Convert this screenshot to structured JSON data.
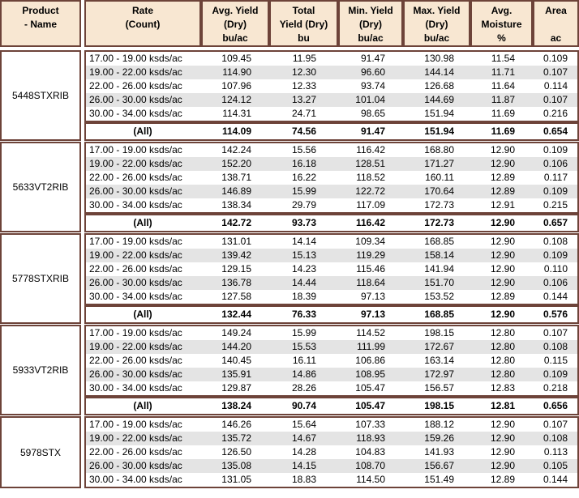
{
  "colors": {
    "border": "#6d4339",
    "header_bg": "#f8e7d2",
    "row_alt": "#e4e4e4",
    "background": "#ffffff",
    "text": "#000000"
  },
  "table": {
    "columns": [
      {
        "id": "product",
        "label_lines": [
          "Product",
          "- Name",
          ""
        ]
      },
      {
        "id": "rate",
        "label_lines": [
          "Rate",
          "(Count)",
          ""
        ]
      },
      {
        "id": "avg",
        "label_lines": [
          "Avg. Yield",
          "(Dry)",
          "bu/ac"
        ]
      },
      {
        "id": "total",
        "label_lines": [
          "Total",
          "Yield (Dry)",
          "bu"
        ]
      },
      {
        "id": "min",
        "label_lines": [
          "Min. Yield",
          "(Dry)",
          "bu/ac"
        ]
      },
      {
        "id": "max",
        "label_lines": [
          "Max. Yield",
          "(Dry)",
          "bu/ac"
        ]
      },
      {
        "id": "moist",
        "label_lines": [
          "Avg.",
          "Moisture",
          "%"
        ]
      },
      {
        "id": "area",
        "label_lines": [
          "Area",
          "",
          "ac"
        ]
      }
    ],
    "value_column_ids": [
      "avg",
      "total",
      "min",
      "max",
      "moist",
      "area"
    ],
    "products": [
      {
        "name": "5448STXRIB",
        "rows": [
          {
            "rate": "17.00 - 19.00 ksds/ac",
            "values": [
              "109.45",
              "11.95",
              "91.47",
              "130.98",
              "11.54",
              "0.109"
            ]
          },
          {
            "rate": "19.00 - 22.00 ksds/ac",
            "values": [
              "114.90",
              "12.30",
              "96.60",
              "144.14",
              "11.71",
              "0.107"
            ]
          },
          {
            "rate": "22.00 - 26.00 ksds/ac",
            "values": [
              "107.96",
              "12.33",
              "93.74",
              "126.68",
              "11.64",
              "0.114"
            ]
          },
          {
            "rate": "26.00 - 30.00 ksds/ac",
            "values": [
              "124.12",
              "13.27",
              "101.04",
              "144.69",
              "11.87",
              "0.107"
            ]
          },
          {
            "rate": "30.00 - 34.00 ksds/ac",
            "values": [
              "114.31",
              "24.71",
              "98.65",
              "151.94",
              "11.69",
              "0.216"
            ]
          }
        ],
        "all": {
          "rate": "(All)",
          "values": [
            "114.09",
            "74.56",
            "91.47",
            "151.94",
            "11.69",
            "0.654"
          ]
        }
      },
      {
        "name": "5633VT2RIB",
        "rows": [
          {
            "rate": "17.00 - 19.00 ksds/ac",
            "values": [
              "142.24",
              "15.56",
              "116.42",
              "168.80",
              "12.90",
              "0.109"
            ]
          },
          {
            "rate": "19.00 - 22.00 ksds/ac",
            "values": [
              "152.20",
              "16.18",
              "128.51",
              "171.27",
              "12.90",
              "0.106"
            ]
          },
          {
            "rate": "22.00 - 26.00 ksds/ac",
            "values": [
              "138.71",
              "16.22",
              "118.52",
              "160.11",
              "12.89",
              "0.117"
            ]
          },
          {
            "rate": "26.00 - 30.00 ksds/ac",
            "values": [
              "146.89",
              "15.99",
              "122.72",
              "170.64",
              "12.89",
              "0.109"
            ]
          },
          {
            "rate": "30.00 - 34.00 ksds/ac",
            "values": [
              "138.34",
              "29.79",
              "117.09",
              "172.73",
              "12.91",
              "0.215"
            ]
          }
        ],
        "all": {
          "rate": "(All)",
          "values": [
            "142.72",
            "93.73",
            "116.42",
            "172.73",
            "12.90",
            "0.657"
          ]
        }
      },
      {
        "name": "5778STXRIB",
        "rows": [
          {
            "rate": "17.00 - 19.00 ksds/ac",
            "values": [
              "131.01",
              "14.14",
              "109.34",
              "168.85",
              "12.90",
              "0.108"
            ]
          },
          {
            "rate": "19.00 - 22.00 ksds/ac",
            "values": [
              "139.42",
              "15.13",
              "119.29",
              "158.14",
              "12.90",
              "0.109"
            ]
          },
          {
            "rate": "22.00 - 26.00 ksds/ac",
            "values": [
              "129.15",
              "14.23",
              "115.46",
              "141.94",
              "12.90",
              "0.110"
            ]
          },
          {
            "rate": "26.00 - 30.00 ksds/ac",
            "values": [
              "136.78",
              "14.44",
              "118.64",
              "151.70",
              "12.90",
              "0.106"
            ]
          },
          {
            "rate": "30.00 - 34.00 ksds/ac",
            "values": [
              "127.58",
              "18.39",
              "97.13",
              "153.52",
              "12.89",
              "0.144"
            ]
          }
        ],
        "all": {
          "rate": "(All)",
          "values": [
            "132.44",
            "76.33",
            "97.13",
            "168.85",
            "12.90",
            "0.576"
          ]
        }
      },
      {
        "name": "5933VT2RIB",
        "rows": [
          {
            "rate": "17.00 - 19.00 ksds/ac",
            "values": [
              "149.24",
              "15.99",
              "114.52",
              "198.15",
              "12.80",
              "0.107"
            ]
          },
          {
            "rate": "19.00 - 22.00 ksds/ac",
            "values": [
              "144.20",
              "15.53",
              "111.99",
              "172.67",
              "12.80",
              "0.108"
            ]
          },
          {
            "rate": "22.00 - 26.00 ksds/ac",
            "values": [
              "140.45",
              "16.11",
              "106.86",
              "163.14",
              "12.80",
              "0.115"
            ]
          },
          {
            "rate": "26.00 - 30.00 ksds/ac",
            "values": [
              "135.91",
              "14.86",
              "108.95",
              "172.97",
              "12.80",
              "0.109"
            ]
          },
          {
            "rate": "30.00 - 34.00 ksds/ac",
            "values": [
              "129.87",
              "28.26",
              "105.47",
              "156.57",
              "12.83",
              "0.218"
            ]
          }
        ],
        "all": {
          "rate": "(All)",
          "values": [
            "138.24",
            "90.74",
            "105.47",
            "198.15",
            "12.81",
            "0.656"
          ]
        }
      },
      {
        "name": "5978STX",
        "rows": [
          {
            "rate": "17.00 - 19.00 ksds/ac",
            "values": [
              "146.26",
              "15.64",
              "107.33",
              "188.12",
              "12.90",
              "0.107"
            ]
          },
          {
            "rate": "19.00 - 22.00 ksds/ac",
            "values": [
              "135.72",
              "14.67",
              "118.93",
              "159.26",
              "12.90",
              "0.108"
            ]
          },
          {
            "rate": "22.00 - 26.00 ksds/ac",
            "values": [
              "126.50",
              "14.28",
              "104.83",
              "141.93",
              "12.90",
              "0.113"
            ]
          },
          {
            "rate": "26.00 - 30.00 ksds/ac",
            "values": [
              "135.08",
              "14.15",
              "108.70",
              "156.67",
              "12.90",
              "0.105"
            ]
          },
          {
            "rate": "30.00 - 34.00 ksds/ac",
            "values": [
              "131.05",
              "18.83",
              "114.50",
              "151.49",
              "12.89",
              "0.144"
            ]
          }
        ],
        "all": null
      }
    ]
  }
}
